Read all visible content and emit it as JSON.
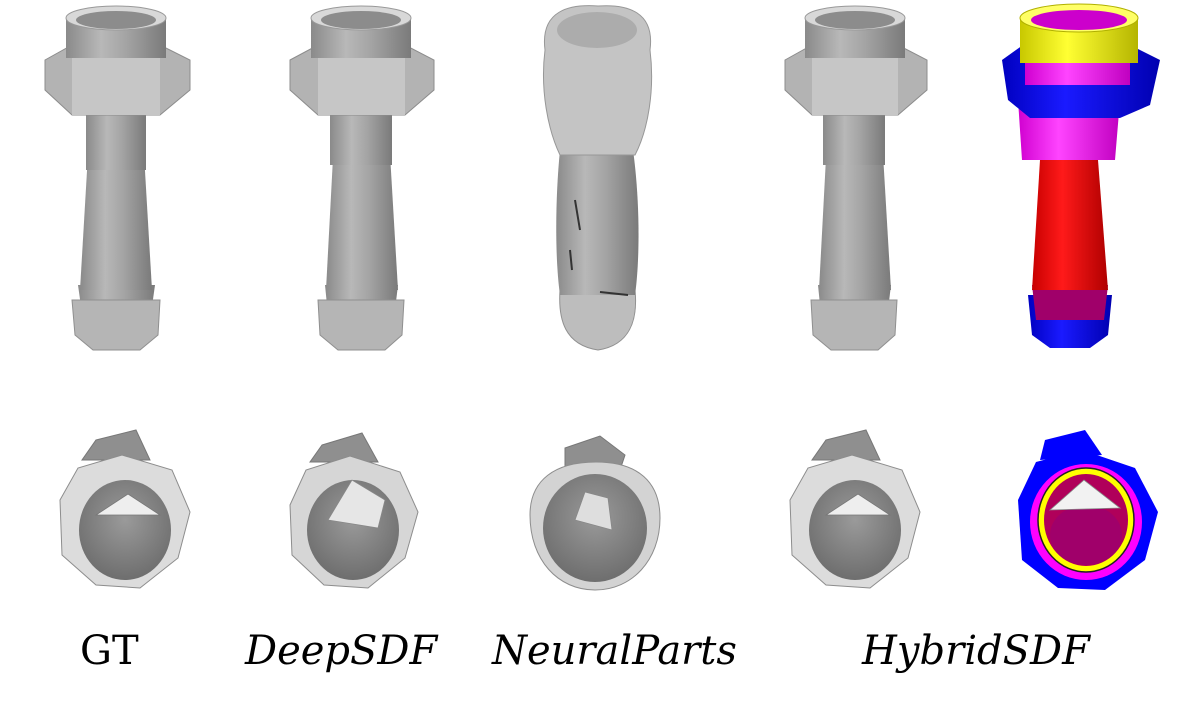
{
  "figure": {
    "columns": [
      {
        "key": "gt",
        "label": "GT",
        "italic": false
      },
      {
        "key": "deepsdf",
        "label": "DeepSDF",
        "italic": true
      },
      {
        "key": "neuralparts",
        "label": "NeuralParts",
        "italic": true
      },
      {
        "key": "hybridsdf_gray",
        "label": "",
        "italic": false
      },
      {
        "key": "hybridsdf_colored",
        "label": "HybridSDF",
        "italic": true
      }
    ],
    "colors": {
      "background": "#ffffff",
      "mesh_gray": "#a9a9a9",
      "mesh_light": "#d6d6d6",
      "mesh_dark": "#7d7d7d",
      "part_yellow": "#ffff00",
      "part_magenta": "#ff00ff",
      "part_blue": "#0000ff",
      "part_red": "#ff0000",
      "part_purple": "#a0006a"
    }
  }
}
